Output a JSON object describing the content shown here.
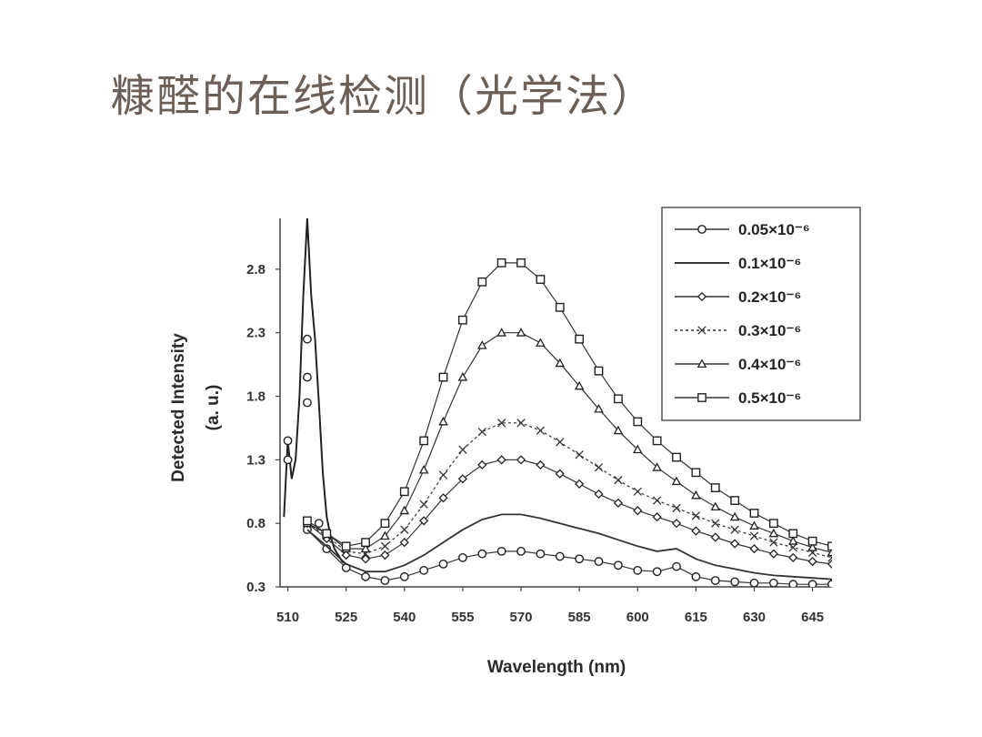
{
  "slide": {
    "title": "糠醛的在线检测（光学法）"
  },
  "chart_data": {
    "type": "line",
    "xlabel": "Wavelength (nm)",
    "ylabel": "Detected Intensity",
    "ylabel2": "(a. u.)",
    "xlim": [
      508,
      650
    ],
    "ylim": [
      0.3,
      3.2
    ],
    "xticks": [
      510,
      525,
      540,
      555,
      570,
      585,
      600,
      615,
      630,
      645
    ],
    "yticks": [
      0.3,
      0.8,
      1.3,
      1.8,
      2.3,
      2.8
    ],
    "xtick_labels": [
      "510",
      "525",
      "540",
      "555",
      "570",
      "585",
      "600",
      "615",
      "630",
      "645"
    ],
    "ytick_labels": [
      "0.3",
      "0.8",
      "1.3",
      "1.8",
      "2.3",
      "2.8"
    ],
    "legend_position": "top-right",
    "series": [
      {
        "name": "0.05×10⁻⁶",
        "marker": "circle",
        "line": "solid",
        "x": [
          515,
          520,
          525,
          530,
          535,
          540,
          545,
          550,
          555,
          560,
          565,
          570,
          575,
          580,
          585,
          590,
          595,
          600,
          605,
          610,
          615,
          620,
          625,
          630,
          635,
          640,
          645,
          650
        ],
        "y": [
          0.75,
          0.6,
          0.45,
          0.38,
          0.35,
          0.38,
          0.43,
          0.48,
          0.53,
          0.56,
          0.58,
          0.58,
          0.56,
          0.54,
          0.52,
          0.5,
          0.47,
          0.43,
          0.42,
          0.46,
          0.38,
          0.35,
          0.34,
          0.33,
          0.33,
          0.32,
          0.32,
          0.32
        ]
      },
      {
        "name": "0.1×10⁻⁶",
        "marker": "none",
        "line": "solid",
        "x": [
          515,
          520,
          525,
          530,
          535,
          540,
          545,
          550,
          555,
          560,
          565,
          570,
          575,
          580,
          585,
          590,
          595,
          600,
          605,
          610,
          615,
          620,
          625,
          630,
          635,
          640,
          645,
          650
        ],
        "y": [
          0.75,
          0.62,
          0.48,
          0.42,
          0.42,
          0.47,
          0.55,
          0.65,
          0.75,
          0.83,
          0.87,
          0.87,
          0.84,
          0.8,
          0.76,
          0.72,
          0.67,
          0.62,
          0.58,
          0.6,
          0.52,
          0.47,
          0.44,
          0.41,
          0.39,
          0.38,
          0.37,
          0.36
        ]
      },
      {
        "name": "0.2×10⁻⁶",
        "marker": "diamond",
        "line": "solid",
        "x": [
          515,
          520,
          525,
          530,
          535,
          540,
          545,
          550,
          555,
          560,
          565,
          570,
          575,
          580,
          585,
          590,
          595,
          600,
          605,
          610,
          615,
          620,
          625,
          630,
          635,
          640,
          645,
          650
        ],
        "y": [
          0.8,
          0.68,
          0.55,
          0.52,
          0.55,
          0.65,
          0.82,
          1.0,
          1.15,
          1.26,
          1.3,
          1.3,
          1.26,
          1.19,
          1.11,
          1.03,
          0.96,
          0.9,
          0.85,
          0.8,
          0.74,
          0.69,
          0.64,
          0.6,
          0.56,
          0.53,
          0.5,
          0.48
        ]
      },
      {
        "name": "0.3×10⁻⁶",
        "marker": "cross",
        "line": "dashed",
        "x": [
          515,
          520,
          525,
          530,
          535,
          540,
          545,
          550,
          555,
          560,
          565,
          570,
          575,
          580,
          585,
          590,
          595,
          600,
          605,
          610,
          615,
          620,
          625,
          630,
          635,
          640,
          645,
          650
        ],
        "y": [
          0.8,
          0.7,
          0.58,
          0.56,
          0.62,
          0.75,
          0.95,
          1.18,
          1.38,
          1.52,
          1.59,
          1.59,
          1.53,
          1.44,
          1.34,
          1.24,
          1.14,
          1.05,
          0.98,
          0.92,
          0.86,
          0.8,
          0.75,
          0.7,
          0.65,
          0.61,
          0.57,
          0.53
        ]
      },
      {
        "name": "0.4×10⁻⁶",
        "marker": "triangle",
        "line": "solid",
        "x": [
          515,
          520,
          525,
          530,
          535,
          540,
          545,
          550,
          555,
          560,
          565,
          570,
          575,
          580,
          585,
          590,
          595,
          600,
          605,
          610,
          615,
          620,
          625,
          630,
          635,
          640,
          645,
          650
        ],
        "y": [
          0.8,
          0.72,
          0.6,
          0.6,
          0.7,
          0.9,
          1.22,
          1.6,
          1.95,
          2.2,
          2.3,
          2.3,
          2.22,
          2.06,
          1.88,
          1.7,
          1.53,
          1.38,
          1.24,
          1.13,
          1.02,
          0.93,
          0.85,
          0.78,
          0.72,
          0.66,
          0.61,
          0.57
        ]
      },
      {
        "name": "0.5×10⁻⁶",
        "marker": "square",
        "line": "solid",
        "x": [
          515,
          520,
          525,
          530,
          535,
          540,
          545,
          550,
          555,
          560,
          565,
          570,
          575,
          580,
          585,
          590,
          595,
          600,
          605,
          610,
          615,
          620,
          625,
          630,
          635,
          640,
          645,
          650
        ],
        "y": [
          0.82,
          0.72,
          0.62,
          0.65,
          0.8,
          1.05,
          1.45,
          1.95,
          2.4,
          2.7,
          2.85,
          2.85,
          2.72,
          2.5,
          2.25,
          2.0,
          1.78,
          1.6,
          1.45,
          1.32,
          1.2,
          1.08,
          0.98,
          0.88,
          0.8,
          0.72,
          0.66,
          0.62
        ]
      }
    ],
    "initial_peak": {
      "x": [
        509,
        510,
        511,
        512,
        513,
        514,
        515,
        516,
        517,
        518,
        519,
        520,
        521,
        522,
        523,
        524,
        525
      ],
      "y": [
        0.85,
        1.45,
        1.15,
        1.3,
        1.8,
        2.6,
        3.2,
        2.6,
        2.25,
        1.75,
        1.2,
        0.85,
        0.7,
        0.6,
        0.55,
        0.5,
        0.48
      ]
    }
  }
}
